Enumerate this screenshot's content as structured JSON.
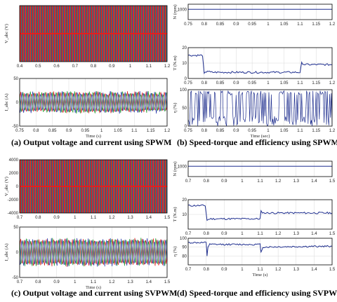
{
  "captions": {
    "a": "(a) Output voltage and current using SPWM",
    "b": "(b) Speed-torque and efficiency using SPWM",
    "c": "(c) Output voltage and current using SVPWM",
    "d": "(d) Speed-torque and efficiency using SVPWM"
  },
  "colors": {
    "red": "#e02020",
    "green": "#1a9a2a",
    "blue": "#2233aa",
    "dark_blue": "#1f2f8f",
    "grid": "#d8d8d8"
  },
  "chart_data": [
    {
      "id": "a1",
      "type": "line",
      "ylabel": "V_abc (V)",
      "xlabel": "",
      "xlim": [
        0.4,
        1.2
      ],
      "x_ticks": [
        "0.4",
        "0.5",
        "0.6",
        "0.7",
        "0.8",
        "0.9",
        "1",
        "1.1",
        "1.2"
      ],
      "ylim": [
        -1,
        1
      ],
      "y_ticks": [],
      "series_colors": [
        "#e02020",
        "#1a9a2a",
        "#2233aa"
      ],
      "pattern": "pwm_dense"
    },
    {
      "id": "a2",
      "type": "line",
      "ylabel": "I_abc (A)",
      "xlabel": "Time (s)",
      "xlim": [
        0.75,
        1.2
      ],
      "x_ticks": [
        "0.75",
        "0.8",
        "0.85",
        "0.9",
        "0.95",
        "1",
        "1.05",
        "1.1",
        "1.15",
        "1.2"
      ],
      "ylim": [
        -50,
        50
      ],
      "y_ticks": [
        "50",
        "0",
        "-50"
      ],
      "series": [
        {
          "color": "#e02020",
          "amplitude": 20
        },
        {
          "color": "#1a9a2a",
          "amplitude": 20
        },
        {
          "color": "#2233aa",
          "amplitude": 20
        }
      ],
      "pattern": "three_phase_noisy"
    },
    {
      "id": "b1",
      "type": "line",
      "ylabel": "N (rpm)",
      "xlabel": "",
      "xlim": [
        0.75,
        1.2
      ],
      "x_ticks": [
        "0.75",
        "0.8",
        "0.85",
        "0.9",
        "0.95",
        "1",
        "1.05",
        "1.1",
        "1.15",
        "1.2"
      ],
      "ylim": [
        0,
        1500
      ],
      "y_ticks": [
        "1000"
      ],
      "points": [
        [
          0.75,
          1000
        ],
        [
          1.2,
          1000
        ]
      ]
    },
    {
      "id": "b2",
      "type": "line",
      "ylabel": "T (N.m)",
      "xlabel": "",
      "xlim": [
        0.75,
        1.2
      ],
      "x_ticks": [
        "0.75",
        "0.8",
        "0.85",
        "0.9",
        "0.95",
        "1",
        "1.05",
        "1.1",
        "1.15",
        "1.2"
      ],
      "ylim": [
        0,
        20
      ],
      "y_ticks": [
        "20",
        "10",
        "0"
      ],
      "points": [
        [
          0.75,
          15
        ],
        [
          0.795,
          15
        ],
        [
          0.8,
          3
        ],
        [
          0.81,
          5
        ],
        [
          0.82,
          4
        ],
        [
          1.1,
          4
        ],
        [
          1.105,
          10
        ],
        [
          1.115,
          9
        ],
        [
          1.2,
          9
        ]
      ]
    },
    {
      "id": "b3",
      "type": "line",
      "ylabel": "η (%)",
      "xlabel": "Time (sec)",
      "xlim": [
        0.75,
        1.2
      ],
      "x_ticks": [
        "0.75",
        "0.8",
        "0.85",
        "0.9",
        "0.95",
        "1",
        "1.05",
        "1.1",
        "1.15",
        "1.2"
      ],
      "ylim": [
        0,
        100
      ],
      "y_ticks": [
        "100",
        "50",
        "0"
      ],
      "pattern": "efficiency_spiky"
    },
    {
      "id": "c1",
      "type": "line",
      "ylabel": "V_abc (V)",
      "xlabel": "",
      "xlim": [
        0.7,
        1.5
      ],
      "x_ticks": [
        "0.7",
        "0.8",
        "0.9",
        "1",
        "1.1",
        "1.2",
        "1.3",
        "1.4",
        "1.5"
      ],
      "ylim": [
        -4000,
        4000
      ],
      "y_ticks": [
        "4000",
        "2000",
        "0",
        "-2000",
        "-4000"
      ],
      "pattern": "pwm_dense"
    },
    {
      "id": "c2",
      "type": "line",
      "ylabel": "I_abc (A)",
      "xlabel": "Time (s)",
      "xlim": [
        0.7,
        1.5
      ],
      "x_ticks": [
        "0.7",
        "0.8",
        "0.9",
        "1",
        "1.1",
        "1.2",
        "1.3",
        "1.4",
        "1.5"
      ],
      "ylim": [
        -50,
        50
      ],
      "y_ticks": [
        "50",
        "0",
        "-50"
      ],
      "series": [
        {
          "color": "#e02020",
          "amplitude": 25
        },
        {
          "color": "#1a9a2a",
          "amplitude": 25
        },
        {
          "color": "#2233aa",
          "amplitude": 25
        }
      ],
      "pattern": "three_phase_noisy"
    },
    {
      "id": "d1",
      "type": "line",
      "ylabel": "N (rpm)",
      "xlabel": "",
      "xlim": [
        0.7,
        1.5
      ],
      "x_ticks": [
        "0.7",
        "0.8",
        "0.9",
        "1",
        "1.1",
        "1.2",
        "1.3",
        "1.4",
        "1.5"
      ],
      "ylim": [
        0,
        1500
      ],
      "y_ticks": [
        "1000"
      ],
      "points": [
        [
          0.7,
          1000
        ],
        [
          1.5,
          1000
        ]
      ]
    },
    {
      "id": "d2",
      "type": "line",
      "ylabel": "T (N.m)",
      "xlabel": "",
      "xlim": [
        0.7,
        1.5
      ],
      "x_ticks": [
        "0.7",
        "0.8",
        "0.9",
        "1",
        "1.1",
        "1.2",
        "1.3",
        "1.4",
        "1.5"
      ],
      "ylim": [
        0,
        20
      ],
      "y_ticks": [
        "20",
        "10"
      ],
      "points": [
        [
          0.7,
          16
        ],
        [
          0.795,
          16
        ],
        [
          0.805,
          6
        ],
        [
          0.82,
          7
        ],
        [
          1.1,
          7
        ],
        [
          1.105,
          12
        ],
        [
          1.12,
          11
        ],
        [
          1.5,
          11
        ]
      ]
    },
    {
      "id": "d3",
      "type": "line",
      "ylabel": "η (%)",
      "xlabel": "Time (s)",
      "xlim": [
        0.7,
        1.5
      ],
      "x_ticks": [
        "0.7",
        "0.8",
        "0.9",
        "1",
        "1.1",
        "1.2",
        "1.3",
        "1.4",
        "1.5"
      ],
      "ylim": [
        70,
        100
      ],
      "y_ticks": [
        "100",
        "90",
        "80"
      ],
      "points": [
        [
          0.7,
          95
        ],
        [
          0.8,
          95
        ],
        [
          0.805,
          80
        ],
        [
          0.81,
          90
        ],
        [
          0.82,
          93
        ],
        [
          1.1,
          93
        ],
        [
          1.105,
          84
        ],
        [
          1.115,
          90
        ],
        [
          1.5,
          91
        ]
      ]
    }
  ]
}
